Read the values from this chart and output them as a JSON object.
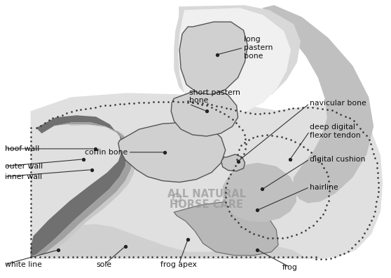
{
  "bg_color": "#ffffff",
  "colors": {
    "dark_gray": "#707070",
    "medium_gray": "#a0a0a0",
    "light_gray": "#c8c8c8",
    "very_light_gray": "#e0e0e0",
    "tendon_gray": "#c0c0c0",
    "bone_fill": "#d0d0d0",
    "sole_fill": "#d0d0d0",
    "frog_fill": "#b8b8b8",
    "cushion_fill": "#c0c0c0",
    "outline": "#555555",
    "dot_color": "#333333",
    "text_color": "#111111",
    "watermark_color": "#999999",
    "inner_wall": "#a0a0a0",
    "white_line_fill": "#c8c8c8",
    "body_bg": "#e0e0e0",
    "pastern_bg": "#d8d8d8",
    "pastern_white": "#f0f0f0"
  },
  "labels": {
    "hoof_wall": "hoof wall",
    "outer_wall": "outer wall",
    "inner_wall": "inner wall",
    "white_line": "white line",
    "sole": "sole",
    "frog_apex": "frog apex",
    "frog": "frog",
    "coffin_bone": "coffin bone",
    "short_pastern": "short pastern\nbone",
    "long_pastern": "long\npastern\nbone",
    "navicular": "navicular bone",
    "deep_digital": "deep digital\nflexor tendon",
    "digital_cushion": "digital cushion",
    "hairline": "hairline",
    "watermark_line1": "ALL NATURAL",
    "watermark_line2": "HORSE CARE"
  }
}
